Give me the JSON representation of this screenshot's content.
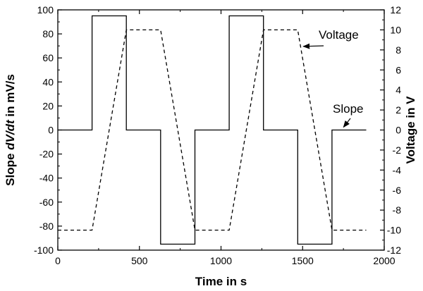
{
  "chart_data": {
    "type": "line",
    "title": "",
    "xlabel": "Time in s",
    "ylabel_left": {
      "pre": "Slope ",
      "italic": "dV/dt",
      "post": " in mV/s"
    },
    "ylabel_right": "Voltage in V",
    "xlim": [
      0,
      2000
    ],
    "ylim_left": [
      -100,
      100
    ],
    "ylim_right": [
      -12,
      12
    ],
    "xticks": [
      0,
      500,
      1000,
      1500,
      2000
    ],
    "yticks_left": [
      -100,
      -80,
      -60,
      -40,
      -20,
      0,
      20,
      40,
      60,
      80,
      100
    ],
    "yticks_right": [
      -12,
      -10,
      -8,
      -6,
      -4,
      -2,
      0,
      2,
      4,
      6,
      8,
      10,
      12
    ],
    "grid": false,
    "series": [
      {
        "name": "Slope",
        "axis": "left",
        "style": "solid",
        "color": "#000000",
        "points": [
          [
            0,
            0
          ],
          [
            210,
            0
          ],
          [
            210,
            95
          ],
          [
            420,
            95
          ],
          [
            420,
            0
          ],
          [
            630,
            0
          ],
          [
            630,
            -95
          ],
          [
            840,
            -95
          ],
          [
            840,
            0
          ],
          [
            1050,
            0
          ],
          [
            1050,
            95
          ],
          [
            1260,
            95
          ],
          [
            1260,
            0
          ],
          [
            1470,
            0
          ],
          [
            1470,
            -95
          ],
          [
            1680,
            -95
          ],
          [
            1680,
            0
          ],
          [
            1890,
            0
          ]
        ]
      },
      {
        "name": "Voltage",
        "axis": "right",
        "style": "dashed",
        "color": "#000000",
        "points": [
          [
            0,
            -10
          ],
          [
            210,
            -10
          ],
          [
            420,
            10
          ],
          [
            630,
            10
          ],
          [
            840,
            -10
          ],
          [
            1050,
            -10
          ],
          [
            1260,
            10
          ],
          [
            1470,
            10
          ],
          [
            1680,
            -10
          ],
          [
            1890,
            -10
          ]
        ]
      }
    ],
    "annotations": [
      {
        "text": "Voltage",
        "arrow_to": [
          1530,
          8
        ]
      },
      {
        "text": "Slope",
        "arrow_to": [
          1755,
          0
        ]
      }
    ]
  }
}
